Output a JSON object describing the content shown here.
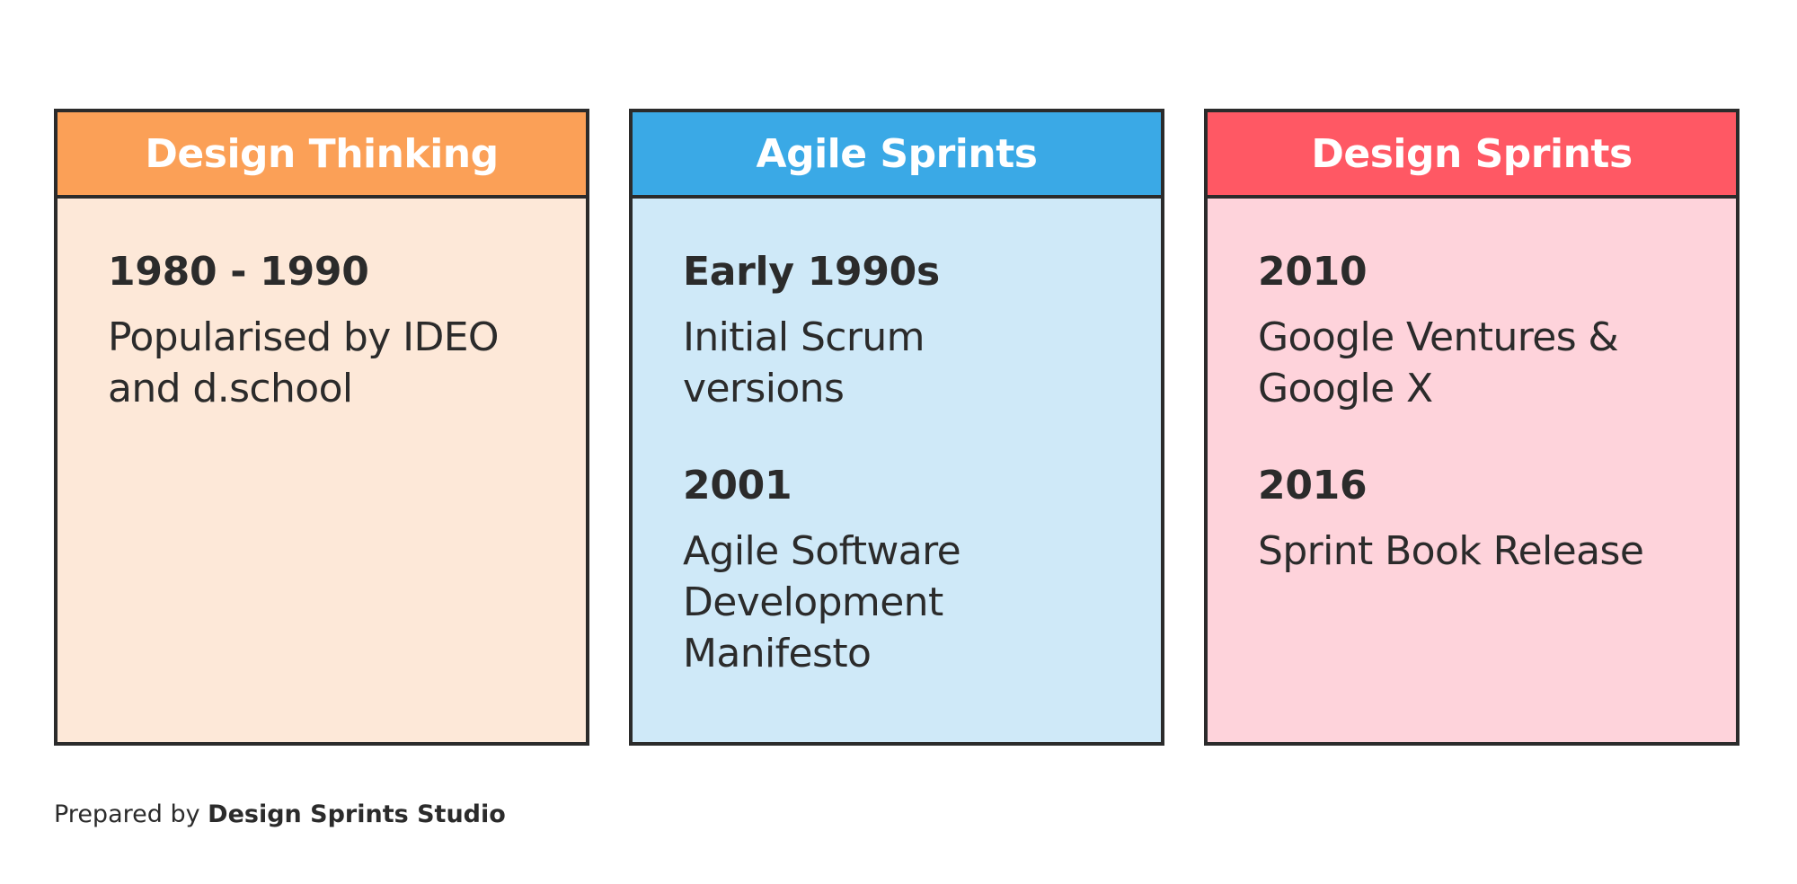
{
  "colors": {
    "border": "#2b2b2b",
    "text": "#2b2b2b"
  },
  "columns": [
    {
      "title": "Design Thinking",
      "header_color": "#fba057",
      "body_color": "#fde8d8",
      "entries": [
        {
          "year": "1980 - 1990",
          "text": "Popularised by IDEO\nand d.school"
        }
      ]
    },
    {
      "title": "Agile Sprints",
      "header_color": "#3aa9e6",
      "body_color": "#cfe9f8",
      "entries": [
        {
          "year": "Early 1990s",
          "text": "Initial Scrum\nversions"
        },
        {
          "year": "2001",
          "text": "Agile Software\nDevelopment\nManifesto"
        }
      ]
    },
    {
      "title": "Design Sprints",
      "header_color": "#ff5864",
      "body_color": "#fed3db",
      "entries": [
        {
          "year": "2010",
          "text": "Google Ventures &\nGoogle X"
        },
        {
          "year": "2016",
          "text": "Sprint Book Release"
        }
      ]
    }
  ],
  "footer": {
    "prefix": "Prepared by ",
    "brand": "Design Sprints Studio"
  }
}
